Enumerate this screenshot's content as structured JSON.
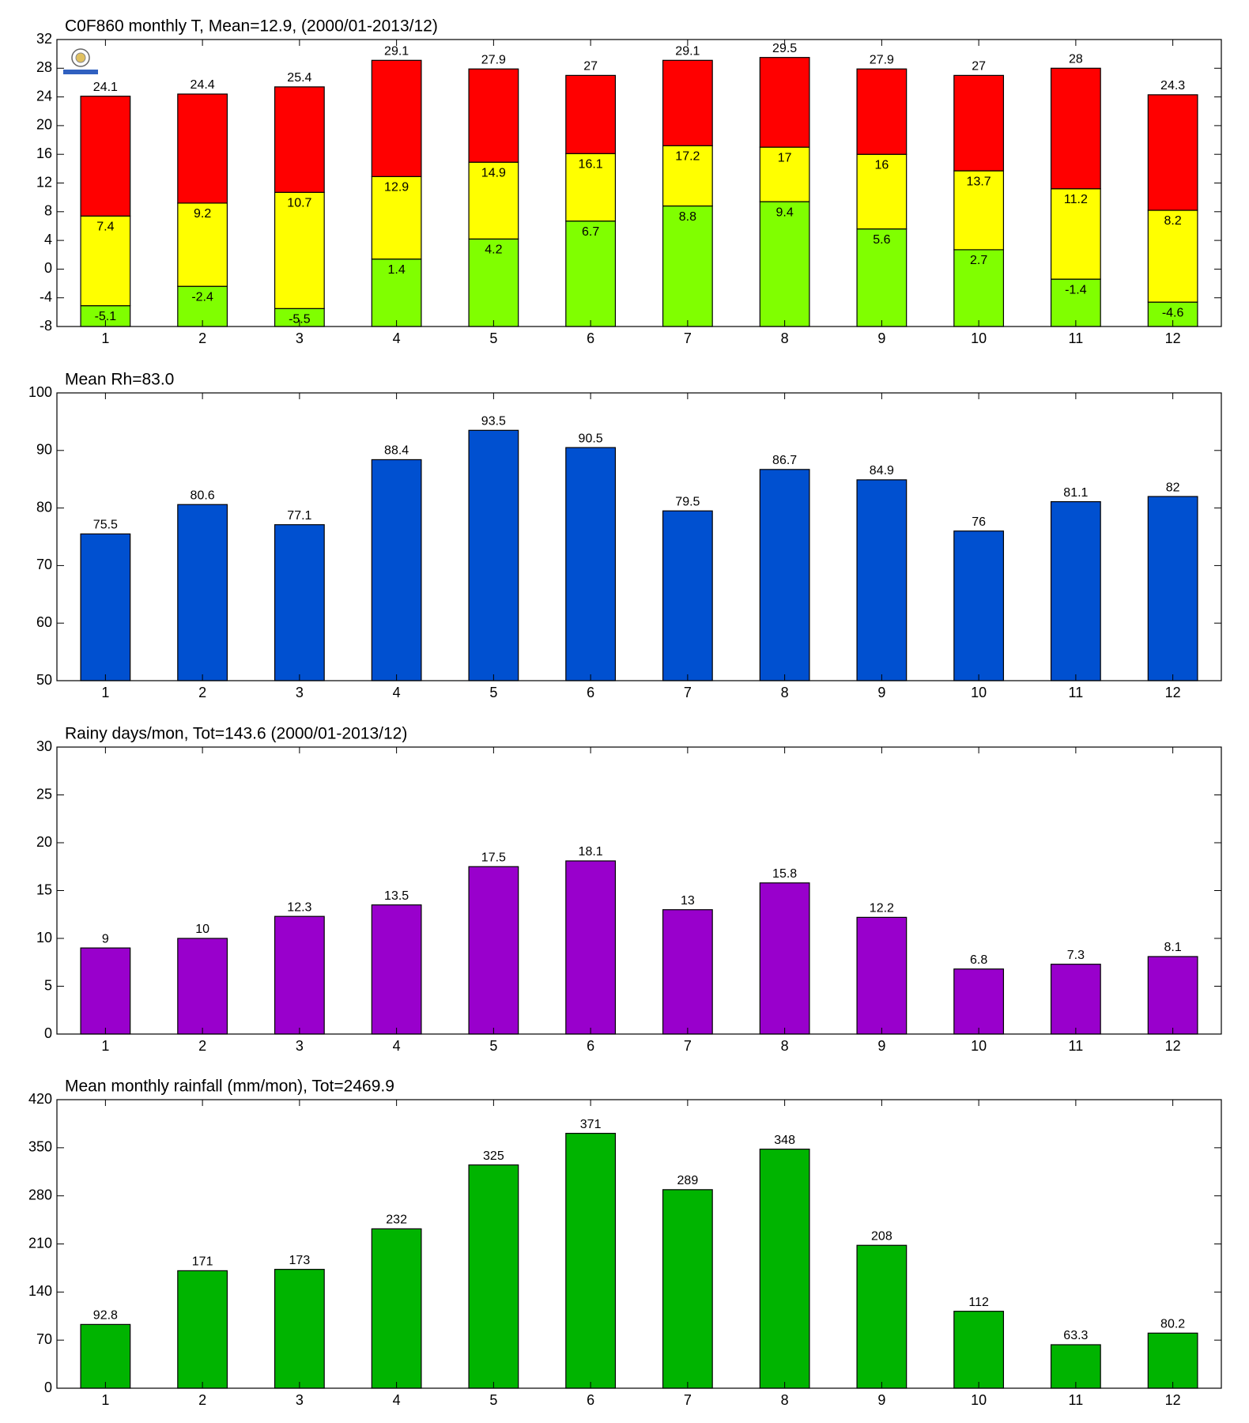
{
  "chart_data": [
    {
      "type": "bar",
      "title": "C0F860 monthly T, Mean=12.9, (2000/01-2013/12)",
      "categories": [
        "1",
        "2",
        "3",
        "4",
        "5",
        "6",
        "7",
        "8",
        "9",
        "10",
        "11",
        "12"
      ],
      "series": [
        {
          "color": "#80ff00",
          "values": [
            -5.1,
            -2.4,
            -5.5,
            1.4,
            4.2,
            6.7,
            8.8,
            9.4,
            5.6,
            2.7,
            -1.4,
            -4.6
          ]
        },
        {
          "color": "#ffff00",
          "values": [
            7.4,
            9.2,
            10.7,
            12.9,
            14.9,
            16.1,
            17.2,
            17,
            16,
            13.7,
            11.2,
            8.2
          ]
        },
        {
          "color": "#ff0000",
          "values": [
            24.1,
            24.4,
            25.4,
            29.1,
            27.9,
            27,
            29.1,
            29.5,
            27.9,
            27,
            28,
            24.3
          ]
        }
      ],
      "ylim": [
        -8,
        32
      ],
      "yticks": [
        -8,
        -4,
        0,
        4,
        8,
        12,
        16,
        20,
        24,
        28,
        32
      ]
    },
    {
      "type": "bar",
      "title": "Mean Rh=83.0",
      "categories": [
        "1",
        "2",
        "3",
        "4",
        "5",
        "6",
        "7",
        "8",
        "9",
        "10",
        "11",
        "12"
      ],
      "values": [
        75.5,
        80.6,
        77.1,
        88.4,
        93.5,
        90.5,
        79.5,
        86.7,
        84.9,
        76,
        81.1,
        82
      ],
      "color": "#0050d0",
      "ylim": [
        50,
        100
      ],
      "yticks": [
        50,
        60,
        70,
        80,
        90,
        100
      ]
    },
    {
      "type": "bar",
      "title": "Rainy days/mon, Tot=143.6 (2000/01-2013/12)",
      "categories": [
        "1",
        "2",
        "3",
        "4",
        "5",
        "6",
        "7",
        "8",
        "9",
        "10",
        "11",
        "12"
      ],
      "values": [
        9,
        10,
        12.3,
        13.5,
        17.5,
        18.1,
        13,
        15.8,
        12.2,
        6.8,
        7.3,
        8.1
      ],
      "color": "#9900cc",
      "ylim": [
        0,
        30
      ],
      "yticks": [
        0,
        5,
        10,
        15,
        20,
        25,
        30
      ]
    },
    {
      "type": "bar",
      "title": "Mean monthly rainfall (mm/mon), Tot=2469.9",
      "categories": [
        "1",
        "2",
        "3",
        "4",
        "5",
        "6",
        "7",
        "8",
        "9",
        "10",
        "11",
        "12"
      ],
      "values": [
        92.8,
        171,
        173,
        232,
        325,
        371,
        289,
        348,
        208,
        112,
        63.3,
        80.2
      ],
      "color": "#00b400",
      "ylim": [
        0,
        420
      ],
      "yticks": [
        0,
        70,
        140,
        210,
        280,
        350,
        420
      ]
    }
  ]
}
